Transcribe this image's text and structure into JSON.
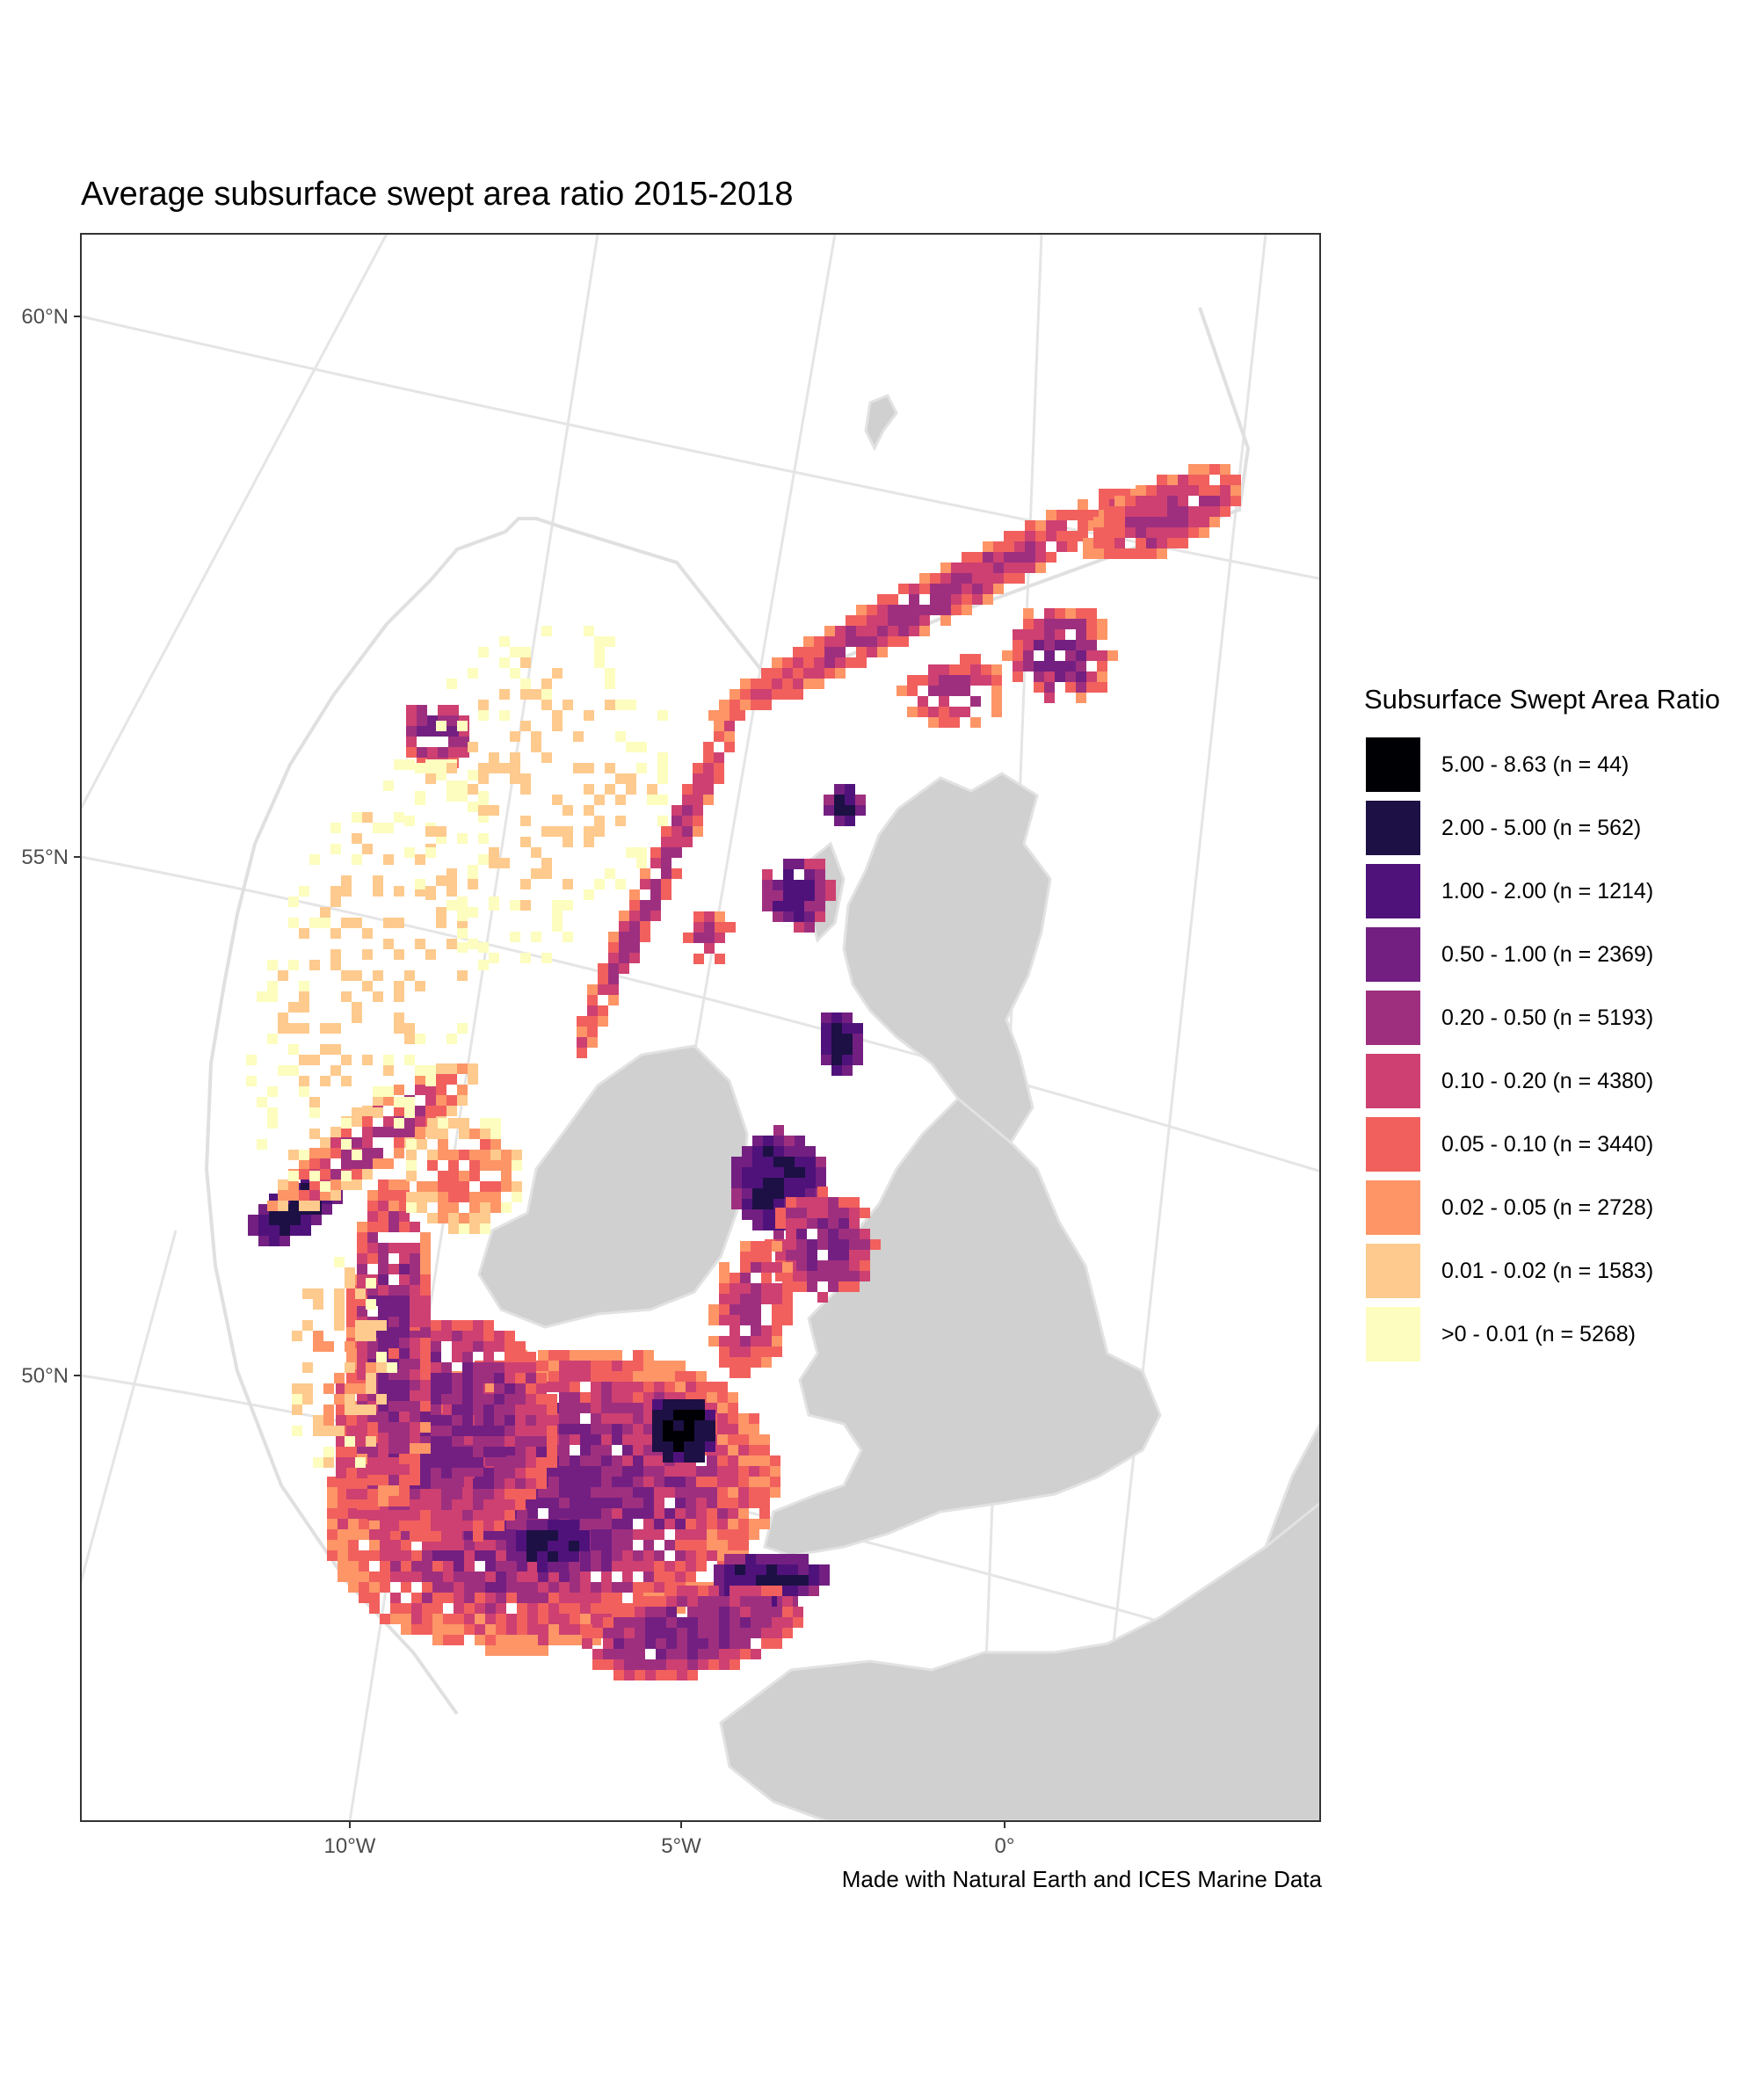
{
  "title": "Average subsurface swept area ratio 2015-2018",
  "caption": "Made with Natural Earth and ICES Marine Data",
  "axes": {
    "y_ticks": [
      "60°N",
      "55°N",
      "50°N"
    ],
    "x_ticks": [
      "10°W",
      "5°W",
      "0°"
    ]
  },
  "legend": {
    "title": "Subsurface Swept Area Ratio",
    "entries": [
      {
        "label": "5.00 - 8.63 (n = 44)",
        "color": "#000004"
      },
      {
        "label": "2.00 - 5.00 (n = 562)",
        "color": "#1c1044"
      },
      {
        "label": "1.00 - 2.00 (n = 1214)",
        "color": "#4f127b"
      },
      {
        "label": "0.50 - 1.00 (n = 2369)",
        "color": "#721f81"
      },
      {
        "label": "0.20 - 0.50 (n = 5193)",
        "color": "#9e2f7f"
      },
      {
        "label": "0.10 - 0.20 (n = 4380)",
        "color": "#cd4071"
      },
      {
        "label": "0.05 - 0.10 (n = 3440)",
        "color": "#f1605d"
      },
      {
        "label": "0.02 - 0.05 (n = 2728)",
        "color": "#fd9567"
      },
      {
        "label": "0.01 - 0.02 (n = 1583)",
        "color": "#feca8d"
      },
      {
        "label": ">0 - 0.01 (n = 5268)",
        "color": "#fcfdbf"
      }
    ]
  },
  "colors": {
    "land": "#d0d0d0",
    "graticule": "#e5e5e5",
    "panel_border": "#333333",
    "boundary": "#e0e0e0"
  }
}
